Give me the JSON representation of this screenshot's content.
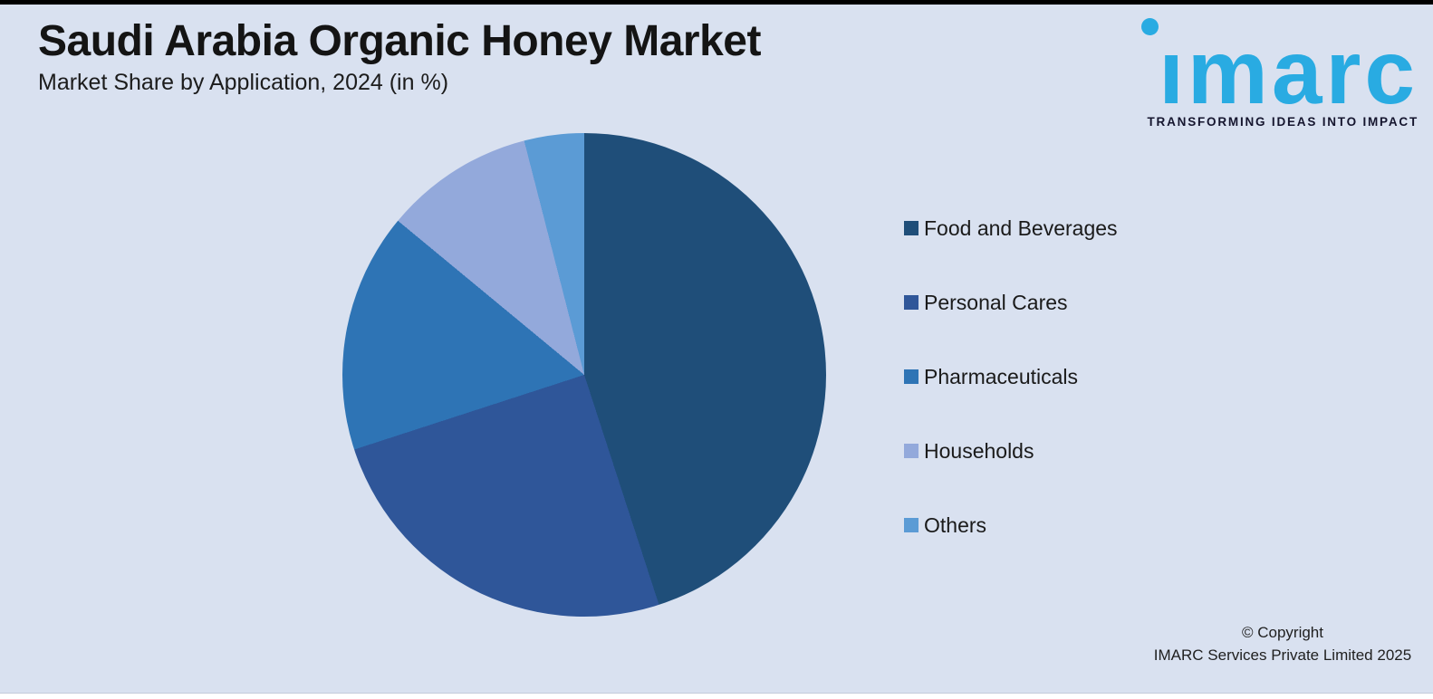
{
  "header": {
    "title": "Saudi Arabia Organic Honey Market",
    "subtitle": "Market Share by Application, 2024 (in %)"
  },
  "logo": {
    "brand": "imarc",
    "brand_display": "ımarc",
    "tagline": "TRANSFORMING IDEAS INTO IMPACT",
    "brand_color": "#29ABE2",
    "tagline_color": "#15152E"
  },
  "chart_data": {
    "type": "pie",
    "title": "Saudi Arabia Organic Honey Market",
    "subtitle": "Market Share by Application, 2024 (in %)",
    "start_angle_deg": 0,
    "direction": "clockwise",
    "values_shown_on_chart": false,
    "legend_position": "right",
    "series": [
      {
        "label": "Food and Beverages",
        "value": 45,
        "color": "#1F4E79"
      },
      {
        "label": "Personal Cares",
        "value": 25,
        "color": "#2F5699"
      },
      {
        "label": "Pharmaceuticals",
        "value": 16,
        "color": "#2E74B5"
      },
      {
        "label": "Households",
        "value": 10,
        "color": "#93A9DB"
      },
      {
        "label": "Others",
        "value": 4,
        "color": "#5B9BD5"
      }
    ]
  },
  "footer": {
    "copyright_line1": "© Copyright",
    "copyright_line2": "IMARC Services Private Limited 2025"
  },
  "theme": {
    "background": "#D9E1F0",
    "top_bar_color": "#000000"
  }
}
